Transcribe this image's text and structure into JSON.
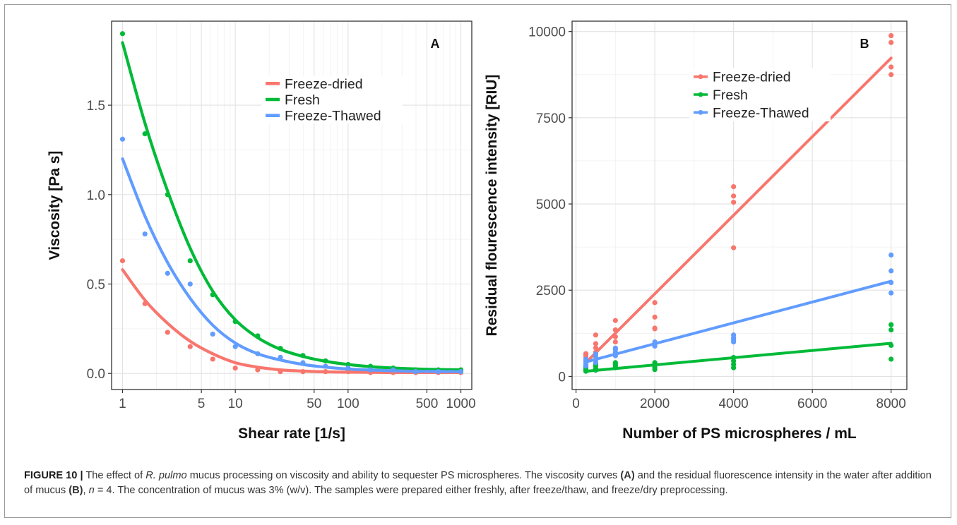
{
  "chart_data": [
    {
      "type": "scatter",
      "panel_label": "A",
      "xlabel": "Shear rate [1/s]",
      "ylabel": "Viscosity [Pa s]",
      "xscale": "log",
      "xlim": [
        0.8,
        1250
      ],
      "ylim": [
        -0.09,
        1.97
      ],
      "xticks": [
        1,
        5,
        10,
        50,
        100,
        500,
        1000
      ],
      "xtick_labels": [
        "1",
        "5",
        "10",
        "50",
        "100",
        "500",
        "1000"
      ],
      "yticks": [
        0,
        0.5,
        1.0,
        1.5
      ],
      "ytick_labels": [
        "0.0",
        "0.5",
        "1.0",
        "1.5"
      ],
      "grid": true,
      "legend_position": "top-center",
      "series": [
        {
          "name": "Freeze-dried",
          "color": "#F8766D",
          "x": [
            1,
            1.58,
            2.51,
            3.98,
            6.31,
            10,
            15.8,
            25.1,
            39.8,
            63.1,
            100,
            158,
            251,
            398,
            631,
            1000
          ],
          "y": [
            0.63,
            0.39,
            0.23,
            0.15,
            0.08,
            0.03,
            0.02,
            0.01,
            0.01,
            0.01,
            0.01,
            0.005,
            0.005,
            0.005,
            0.005,
            0.005
          ],
          "fit_y": [
            0.58,
            0.41,
            0.28,
            0.18,
            0.11,
            0.06,
            0.035,
            0.02,
            0.013,
            0.009,
            0.007,
            0.006,
            0.005,
            0.005,
            0.005,
            0.005
          ]
        },
        {
          "name": "Fresh",
          "color": "#00BA38",
          "x": [
            1,
            1.58,
            2.51,
            3.98,
            6.31,
            10,
            15.8,
            25.1,
            39.8,
            63.1,
            100,
            158,
            251,
            398,
            631,
            1000
          ],
          "y": [
            1.9,
            1.34,
            1.0,
            0.63,
            0.44,
            0.29,
            0.21,
            0.14,
            0.1,
            0.07,
            0.05,
            0.04,
            0.03,
            0.02,
            0.02,
            0.02
          ],
          "fit_y": [
            1.85,
            1.4,
            1.02,
            0.7,
            0.46,
            0.3,
            0.2,
            0.135,
            0.095,
            0.068,
            0.05,
            0.038,
            0.03,
            0.025,
            0.022,
            0.02
          ]
        },
        {
          "name": "Freeze-Thawed",
          "color": "#619CFF",
          "x": [
            1,
            1.58,
            2.51,
            3.98,
            6.31,
            10,
            15.8,
            25.1,
            39.8,
            63.1,
            100,
            158,
            251,
            398,
            631,
            1000
          ],
          "y": [
            1.31,
            0.78,
            0.56,
            0.5,
            0.22,
            0.15,
            0.11,
            0.09,
            0.06,
            0.04,
            0.03,
            0.02,
            0.02,
            0.01,
            0.01,
            0.01
          ],
          "fit_y": [
            1.2,
            0.88,
            0.62,
            0.42,
            0.27,
            0.17,
            0.11,
            0.075,
            0.05,
            0.035,
            0.025,
            0.019,
            0.015,
            0.012,
            0.011,
            0.01
          ]
        }
      ]
    },
    {
      "type": "scatter",
      "panel_label": "B",
      "xlabel": "Number of PS microspheres / mL",
      "ylabel": "Residual flourescence intensity [RIU]",
      "xlim": [
        -100,
        8400
      ],
      "ylim": [
        -380,
        10300
      ],
      "xticks": [
        0,
        2000,
        4000,
        6000,
        8000
      ],
      "xtick_labels": [
        "0",
        "2000",
        "4000",
        "6000",
        "8000"
      ],
      "yticks": [
        0,
        2500,
        5000,
        7500,
        10000
      ],
      "ytick_labels": [
        "0",
        "2500",
        "5000",
        "7500",
        "10000"
      ],
      "grid": true,
      "legend_position": "top-center",
      "series": [
        {
          "name": "Freeze-dried",
          "color": "#F8766D",
          "points": [
            [
              250,
              450
            ],
            [
              250,
              560
            ],
            [
              250,
              620
            ],
            [
              250,
              660
            ],
            [
              500,
              700
            ],
            [
              500,
              830
            ],
            [
              500,
              950
            ],
            [
              500,
              1200
            ],
            [
              1000,
              1000
            ],
            [
              1000,
              1150
            ],
            [
              1000,
              1350
            ],
            [
              1000,
              1620
            ],
            [
              2000,
              1380
            ],
            [
              2000,
              1400
            ],
            [
              2000,
              1720
            ],
            [
              2000,
              2140
            ],
            [
              4000,
              3730
            ],
            [
              4000,
              5050
            ],
            [
              4000,
              5230
            ],
            [
              4000,
              5500
            ],
            [
              8000,
              8750
            ],
            [
              8000,
              8970
            ],
            [
              8000,
              9680
            ],
            [
              8000,
              9880
            ]
          ],
          "fit": [
            [
              250,
              400
            ],
            [
              8000,
              9230
            ]
          ]
        },
        {
          "name": "Fresh",
          "color": "#00BA38",
          "points": [
            [
              250,
              150
            ],
            [
              250,
              200
            ],
            [
              250,
              250
            ],
            [
              250,
              300
            ],
            [
              500,
              180
            ],
            [
              500,
              230
            ],
            [
              500,
              300
            ],
            [
              500,
              350
            ],
            [
              1000,
              250
            ],
            [
              1000,
              300
            ],
            [
              1000,
              350
            ],
            [
              1000,
              400
            ],
            [
              2000,
              200
            ],
            [
              2000,
              260
            ],
            [
              2000,
              350
            ],
            [
              2000,
              400
            ],
            [
              4000,
              250
            ],
            [
              4000,
              350
            ],
            [
              4000,
              450
            ],
            [
              4000,
              550
            ],
            [
              8000,
              500
            ],
            [
              8000,
              900
            ],
            [
              8000,
              1350
            ],
            [
              8000,
              1500
            ]
          ],
          "fit": [
            [
              250,
              150
            ],
            [
              8000,
              960
            ]
          ]
        },
        {
          "name": "Freeze-Thawed",
          "color": "#619CFF",
          "points": [
            [
              250,
              300
            ],
            [
              250,
              350
            ],
            [
              250,
              420
            ],
            [
              250,
              500
            ],
            [
              500,
              400
            ],
            [
              500,
              480
            ],
            [
              500,
              580
            ],
            [
              500,
              650
            ],
            [
              1000,
              600
            ],
            [
              1000,
              700
            ],
            [
              1000,
              780
            ],
            [
              1000,
              820
            ],
            [
              2000,
              880
            ],
            [
              2000,
              930
            ],
            [
              2000,
              960
            ],
            [
              2000,
              1000
            ],
            [
              4000,
              1000
            ],
            [
              4000,
              1060
            ],
            [
              4000,
              1120
            ],
            [
              4000,
              1200
            ],
            [
              8000,
              2420
            ],
            [
              8000,
              2720
            ],
            [
              8000,
              3060
            ],
            [
              8000,
              3520
            ]
          ],
          "fit": [
            [
              250,
              420
            ],
            [
              8000,
              2760
            ]
          ]
        }
      ]
    }
  ],
  "caption": {
    "figure_label": "FIGURE 10 |",
    "text_1": " The effect of ",
    "species": "R. pulmo",
    "text_2": " mucus processing on viscosity and ability to sequester PS microspheres. The viscosity curves ",
    "ref_a": "(A)",
    "text_3": " and the residual fluorescence intensity in the water after addition of mucus ",
    "ref_b": "(B)",
    "text_4": ", ",
    "n_symbol": "n",
    "text_5": " = 4. The concentration of mucus was 3% (w/v). The samples were prepared either freshly, after freeze/thaw, and freeze/dry preprocessing."
  }
}
